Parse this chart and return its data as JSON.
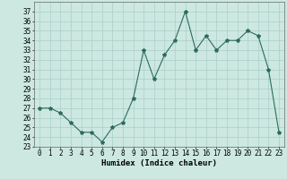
{
  "x": [
    0,
    1,
    2,
    3,
    4,
    5,
    6,
    7,
    8,
    9,
    10,
    11,
    12,
    13,
    14,
    15,
    16,
    17,
    18,
    19,
    20,
    21,
    22,
    23
  ],
  "y": [
    27,
    27,
    26.5,
    25.5,
    24.5,
    24.5,
    23.5,
    25,
    25.5,
    28,
    33,
    30,
    32.5,
    34,
    37,
    33,
    34.5,
    33,
    34,
    34,
    35,
    34.5,
    31,
    24.5
  ],
  "xlabel": "Humidex (Indice chaleur)",
  "xlim": [
    -0.5,
    23.5
  ],
  "ylim": [
    23,
    38
  ],
  "yticks": [
    23,
    24,
    25,
    26,
    27,
    28,
    29,
    30,
    31,
    32,
    33,
    34,
    35,
    36,
    37
  ],
  "xticks": [
    0,
    1,
    2,
    3,
    4,
    5,
    6,
    7,
    8,
    9,
    10,
    11,
    12,
    13,
    14,
    15,
    16,
    17,
    18,
    19,
    20,
    21,
    22,
    23
  ],
  "line_color": "#2d6b5e",
  "marker": "*",
  "marker_size": 3,
  "bg_color": "#cce8e0",
  "grid_color": "#aacfc8",
  "axis_label_fontsize": 6.5,
  "tick_fontsize": 5.5
}
